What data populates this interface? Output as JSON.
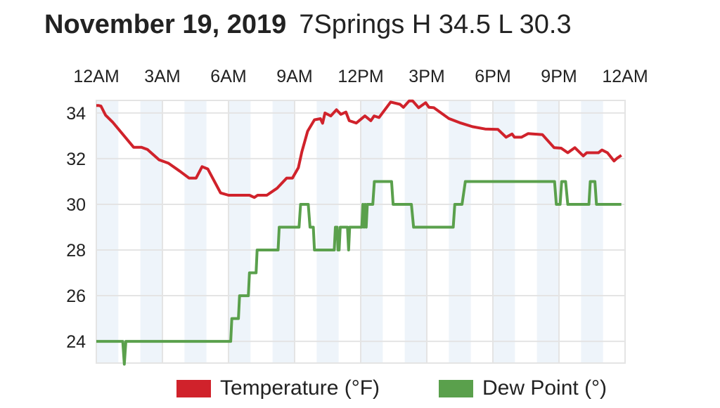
{
  "header": {
    "date": "November 19, 2019",
    "summary": "7Springs H 34.5 L 30.3"
  },
  "colors": {
    "temperature": "#d0222b",
    "dew_point": "#5aa04c",
    "stripe": "#eef4fa",
    "grid": "#e4e4e4"
  },
  "chart_data": {
    "type": "line",
    "title": "November 19, 2019 7Springs H 34.5 L 30.3",
    "xlabel": "",
    "ylabel": "",
    "x_unit": "hour of day",
    "xlim": [
      0,
      24
    ],
    "ylim": [
      23.05,
      34.55
    ],
    "x_ticks": [
      {
        "hour": 0,
        "label": "12AM"
      },
      {
        "hour": 3,
        "label": "3AM"
      },
      {
        "hour": 6,
        "label": "6AM"
      },
      {
        "hour": 9,
        "label": "9AM"
      },
      {
        "hour": 12,
        "label": "12PM"
      },
      {
        "hour": 15,
        "label": "3PM"
      },
      {
        "hour": 18,
        "label": "6PM"
      },
      {
        "hour": 21,
        "label": "9PM"
      },
      {
        "hour": 24,
        "label": "12AM"
      }
    ],
    "y_ticks": [
      24,
      26,
      28,
      30,
      32,
      34
    ],
    "grid": true,
    "legend_position": "bottom",
    "series": [
      {
        "name": "Temperature (°F)",
        "color": "#d0222b",
        "points": [
          [
            0,
            34.33
          ],
          [
            0.1,
            34.33
          ],
          [
            0.21,
            34.3
          ],
          [
            0.42,
            33.9
          ],
          [
            0.74,
            33.6
          ],
          [
            1.69,
            32.5
          ],
          [
            2.05,
            32.5
          ],
          [
            2.32,
            32.4
          ],
          [
            2.85,
            31.95
          ],
          [
            3.27,
            31.8
          ],
          [
            3.79,
            31.45
          ],
          [
            4.21,
            31.15
          ],
          [
            4.53,
            31.15
          ],
          [
            4.8,
            31.65
          ],
          [
            5.06,
            31.55
          ],
          [
            5.64,
            30.5
          ],
          [
            6.0,
            30.4
          ],
          [
            6.95,
            30.4
          ],
          [
            7.17,
            30.3
          ],
          [
            7.32,
            30.4
          ],
          [
            7.74,
            30.4
          ],
          [
            8.2,
            30.7
          ],
          [
            8.64,
            31.15
          ],
          [
            8.9,
            31.15
          ],
          [
            9.17,
            31.6
          ],
          [
            9.33,
            32.3
          ],
          [
            9.59,
            33.2
          ],
          [
            9.9,
            33.7
          ],
          [
            10.17,
            33.75
          ],
          [
            10.27,
            33.55
          ],
          [
            10.38,
            34.0
          ],
          [
            10.64,
            33.87
          ],
          [
            10.9,
            34.14
          ],
          [
            11.1,
            33.94
          ],
          [
            11.33,
            34.04
          ],
          [
            11.48,
            33.66
          ],
          [
            11.8,
            33.56
          ],
          [
            12.19,
            33.87
          ],
          [
            12.46,
            33.66
          ],
          [
            12.61,
            33.87
          ],
          [
            12.83,
            33.8
          ],
          [
            13.36,
            34.48
          ],
          [
            13.78,
            34.38
          ],
          [
            13.94,
            34.25
          ],
          [
            14.2,
            34.53
          ],
          [
            14.36,
            34.53
          ],
          [
            14.63,
            34.23
          ],
          [
            14.95,
            34.45
          ],
          [
            15.1,
            34.25
          ],
          [
            15.32,
            34.23
          ],
          [
            16.0,
            33.76
          ],
          [
            16.54,
            33.56
          ],
          [
            17.07,
            33.4
          ],
          [
            17.65,
            33.3
          ],
          [
            18.23,
            33.28
          ],
          [
            18.6,
            32.94
          ],
          [
            18.87,
            33.08
          ],
          [
            18.98,
            32.94
          ],
          [
            19.3,
            32.94
          ],
          [
            19.6,
            33.1
          ],
          [
            20.25,
            33.05
          ],
          [
            20.78,
            32.48
          ],
          [
            21.1,
            32.46
          ],
          [
            21.4,
            32.26
          ],
          [
            21.72,
            32.48
          ],
          [
            22.1,
            32.12
          ],
          [
            22.26,
            32.26
          ],
          [
            22.79,
            32.26
          ],
          [
            22.95,
            32.38
          ],
          [
            23.2,
            32.26
          ],
          [
            23.5,
            31.9
          ],
          [
            23.64,
            32.02
          ],
          [
            23.83,
            32.15
          ]
        ]
      },
      {
        "name": "Dew Point (°)",
        "color": "#5aa04c",
        "points": [
          [
            0,
            24
          ],
          [
            1.2,
            24
          ],
          [
            1.27,
            23
          ],
          [
            1.34,
            24
          ],
          [
            6.1,
            24
          ],
          [
            6.15,
            25
          ],
          [
            6.45,
            25
          ],
          [
            6.5,
            26
          ],
          [
            6.9,
            26
          ],
          [
            6.95,
            27
          ],
          [
            7.25,
            27
          ],
          [
            7.3,
            28
          ],
          [
            8.25,
            28
          ],
          [
            8.3,
            29
          ],
          [
            9.2,
            29
          ],
          [
            9.27,
            30
          ],
          [
            9.62,
            30
          ],
          [
            9.7,
            29
          ],
          [
            9.85,
            29
          ],
          [
            9.9,
            28
          ],
          [
            10.8,
            28
          ],
          [
            10.85,
            29
          ],
          [
            10.93,
            29
          ],
          [
            10.97,
            28
          ],
          [
            11.02,
            28
          ],
          [
            11.07,
            29
          ],
          [
            11.4,
            29
          ],
          [
            11.45,
            28
          ],
          [
            11.5,
            29
          ],
          [
            12.05,
            29
          ],
          [
            12.1,
            30
          ],
          [
            12.15,
            29
          ],
          [
            12.2,
            30
          ],
          [
            12.25,
            29
          ],
          [
            12.3,
            30
          ],
          [
            12.55,
            30
          ],
          [
            12.62,
            31
          ],
          [
            13.4,
            31
          ],
          [
            13.47,
            30
          ],
          [
            14.3,
            30
          ],
          [
            14.4,
            29
          ],
          [
            16.2,
            29
          ],
          [
            16.27,
            30
          ],
          [
            16.6,
            30
          ],
          [
            16.75,
            31
          ],
          [
            20.8,
            31
          ],
          [
            20.88,
            30
          ],
          [
            21.05,
            30
          ],
          [
            21.12,
            31
          ],
          [
            21.3,
            31
          ],
          [
            21.4,
            30
          ],
          [
            22.36,
            30
          ],
          [
            22.42,
            31
          ],
          [
            22.63,
            31
          ],
          [
            22.7,
            30
          ],
          [
            23.83,
            30
          ]
        ]
      }
    ]
  }
}
